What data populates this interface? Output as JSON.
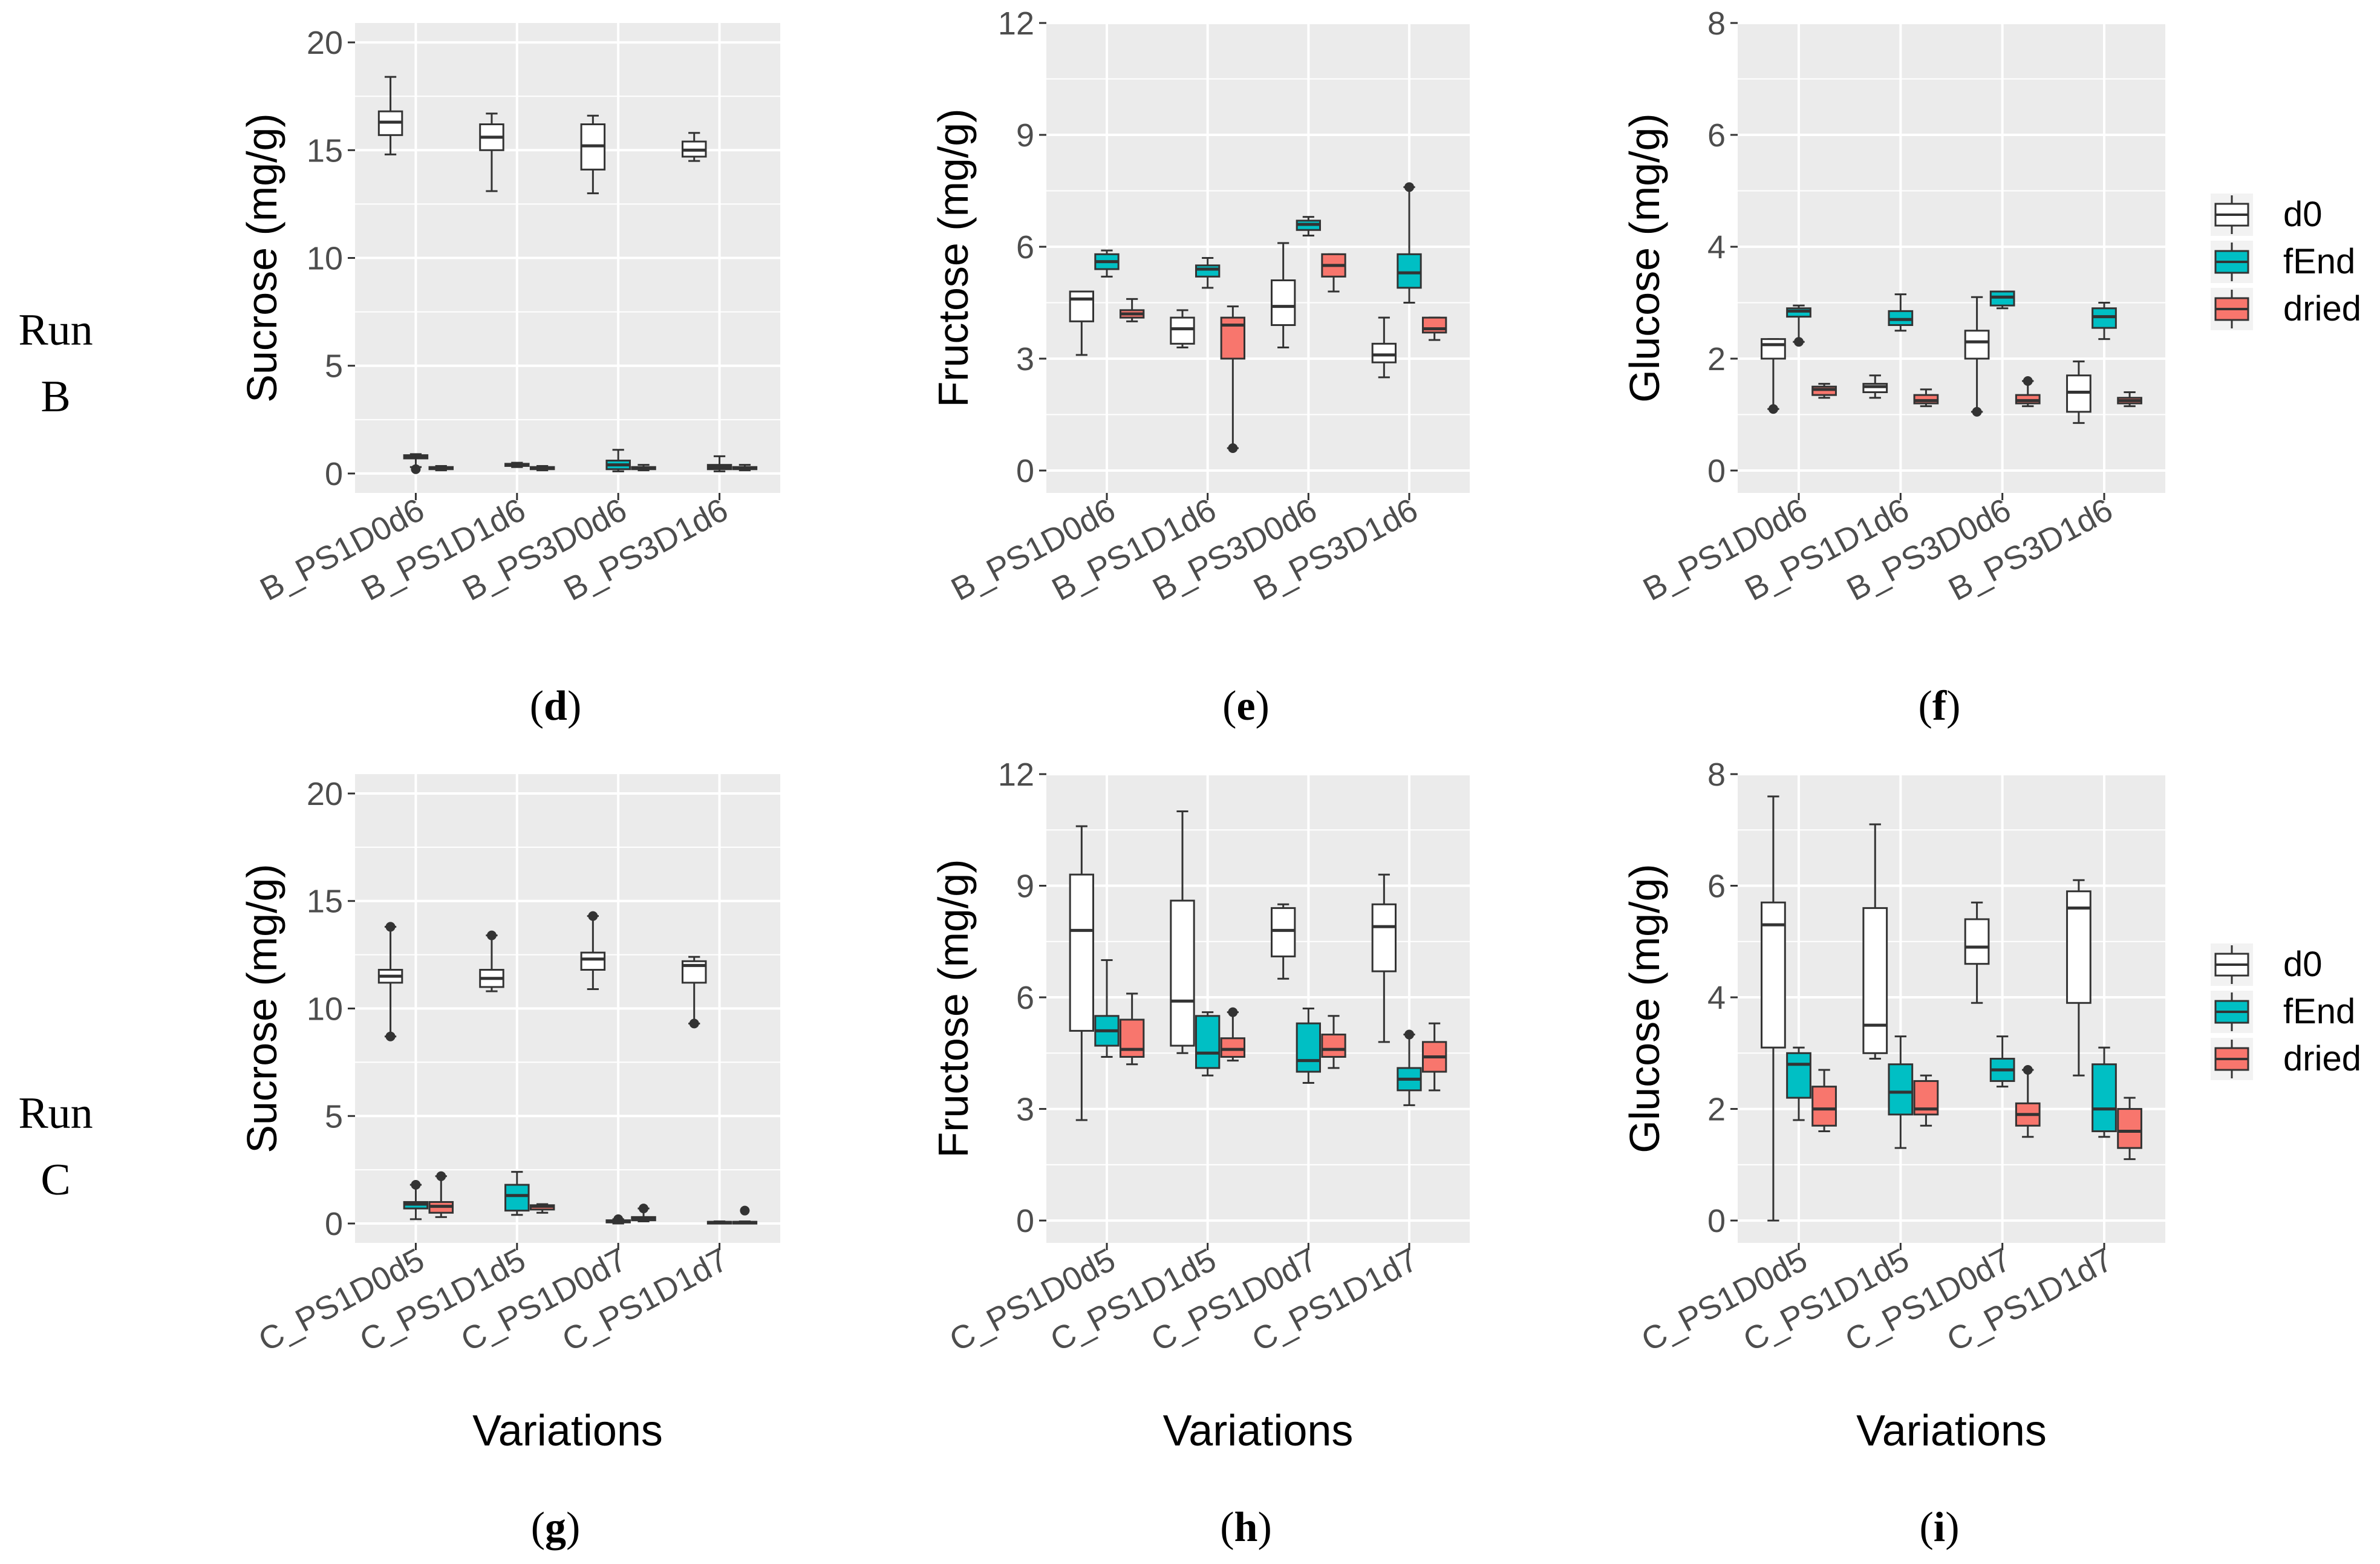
{
  "row_labels": [
    {
      "line1": "Run",
      "line2": "B"
    },
    {
      "line1": "Run",
      "line2": "C"
    }
  ],
  "x_axis_title": "Variations",
  "legend": {
    "entries": [
      {
        "label": "d0",
        "color": "#ffffff"
      },
      {
        "label": "fEnd",
        "color": "#00bfc4"
      },
      {
        "label": "dried",
        "color": "#f8766d"
      }
    ]
  },
  "chart_data": [
    {
      "panel": "(d)",
      "panel_letter": "d",
      "type": "boxplot",
      "ylabel": "Sucrose (mg/g)",
      "ylim": [
        -0.9,
        20.9
      ],
      "yticks": [
        0,
        5,
        10,
        15,
        20
      ],
      "categories": [
        "B_PS1D0d6",
        "B_PS1D1d6",
        "B_PS3D0d6",
        "B_PS3D1d6"
      ],
      "series": [
        {
          "name": "d0",
          "boxes": [
            [
              14.8,
              15.7,
              16.3,
              16.8,
              18.4
            ],
            [
              13.1,
              15.0,
              15.6,
              16.2,
              16.7
            ],
            [
              13.0,
              14.1,
              15.2,
              16.2,
              16.6
            ],
            [
              14.5,
              14.7,
              15.0,
              15.4,
              15.8
            ]
          ],
          "outliers": [
            [],
            [],
            [],
            []
          ]
        },
        {
          "name": "fEnd",
          "boxes": [
            [
              0.3,
              0.7,
              0.8,
              0.85,
              0.9
            ],
            [
              0.3,
              0.35,
              0.4,
              0.45,
              0.5
            ],
            [
              0.1,
              0.2,
              0.4,
              0.6,
              1.1
            ],
            [
              0.1,
              0.2,
              0.3,
              0.4,
              0.8
            ]
          ],
          "outliers": [
            [
              0.2
            ],
            [],
            [],
            []
          ]
        },
        {
          "name": "dried",
          "boxes": [
            [
              0.15,
              0.2,
              0.25,
              0.3,
              0.35
            ],
            [
              0.15,
              0.2,
              0.25,
              0.3,
              0.35
            ],
            [
              0.15,
              0.2,
              0.25,
              0.3,
              0.4
            ],
            [
              0.15,
              0.2,
              0.25,
              0.3,
              0.4
            ]
          ],
          "outliers": [
            [],
            [],
            [],
            []
          ]
        }
      ]
    },
    {
      "panel": "(e)",
      "panel_letter": "e",
      "type": "boxplot",
      "ylabel": "Fructose (mg/g)",
      "ylim": [
        -0.6,
        12.0
      ],
      "yticks": [
        0,
        3,
        6,
        9,
        12
      ],
      "categories": [
        "B_PS1D0d6",
        "B_PS1D1d6",
        "B_PS3D0d6",
        "B_PS3D1d6"
      ],
      "series": [
        {
          "name": "d0",
          "boxes": [
            [
              3.1,
              4.0,
              4.6,
              4.8,
              4.8
            ],
            [
              3.3,
              3.4,
              3.8,
              4.1,
              4.3
            ],
            [
              3.3,
              3.9,
              4.4,
              5.1,
              6.1
            ],
            [
              2.5,
              2.9,
              3.1,
              3.4,
              4.1
            ]
          ],
          "outliers": [
            [],
            [],
            [],
            []
          ]
        },
        {
          "name": "fEnd",
          "boxes": [
            [
              5.2,
              5.4,
              5.6,
              5.8,
              5.9
            ],
            [
              4.9,
              5.2,
              5.4,
              5.5,
              5.7
            ],
            [
              6.3,
              6.45,
              6.6,
              6.7,
              6.8
            ],
            [
              4.5,
              4.9,
              5.3,
              5.8,
              7.6
            ]
          ],
          "outliers": [
            [],
            [],
            [],
            [
              7.6
            ]
          ]
        },
        {
          "name": "dried",
          "boxes": [
            [
              4.0,
              4.1,
              4.2,
              4.3,
              4.6
            ],
            [
              0.6,
              3.0,
              3.9,
              4.1,
              4.4
            ],
            [
              4.8,
              5.2,
              5.5,
              5.8,
              5.8
            ],
            [
              3.5,
              3.7,
              3.8,
              4.1,
              4.1
            ]
          ],
          "outliers": [
            [],
            [
              0.6
            ],
            [],
            []
          ]
        }
      ]
    },
    {
      "panel": "(f)",
      "panel_letter": "f",
      "type": "boxplot",
      "ylabel": "Glucose (mg/g)",
      "ylim": [
        -0.4,
        8.0
      ],
      "yticks": [
        0,
        2,
        4,
        6,
        8
      ],
      "categories": [
        "B_PS1D0d6",
        "B_PS1D1d6",
        "B_PS3D0d6",
        "B_PS3D1d6"
      ],
      "series": [
        {
          "name": "d0",
          "boxes": [
            [
              1.1,
              2.0,
              2.25,
              2.35,
              2.35
            ],
            [
              1.3,
              1.4,
              1.5,
              1.55,
              1.7
            ],
            [
              1.05,
              2.0,
              2.3,
              2.5,
              3.1
            ],
            [
              0.85,
              1.05,
              1.4,
              1.7,
              1.95
            ]
          ],
          "outliers": [
            [
              1.1
            ],
            [],
            [
              1.05
            ],
            []
          ]
        },
        {
          "name": "fEnd",
          "boxes": [
            [
              2.3,
              2.75,
              2.85,
              2.9,
              2.95
            ],
            [
              2.5,
              2.6,
              2.7,
              2.85,
              3.15
            ],
            [
              2.9,
              2.95,
              3.1,
              3.2,
              3.2
            ],
            [
              2.35,
              2.55,
              2.75,
              2.9,
              3.0
            ]
          ],
          "outliers": [
            [
              2.3
            ],
            [],
            [],
            []
          ]
        },
        {
          "name": "dried",
          "boxes": [
            [
              1.3,
              1.35,
              1.45,
              1.5,
              1.55
            ],
            [
              1.15,
              1.2,
              1.25,
              1.35,
              1.45
            ],
            [
              1.15,
              1.2,
              1.25,
              1.35,
              1.6
            ],
            [
              1.15,
              1.2,
              1.25,
              1.3,
              1.4
            ]
          ],
          "outliers": [
            [],
            [],
            [
              1.6
            ],
            []
          ]
        }
      ]
    },
    {
      "panel": "(g)",
      "panel_letter": "g",
      "type": "boxplot",
      "ylabel": "Sucrose (mg/g)",
      "ylim": [
        -0.9,
        20.9
      ],
      "yticks": [
        0,
        5,
        10,
        15,
        20
      ],
      "categories": [
        "C_PS1D0d5",
        "C_PS1D1d5",
        "C_PS1D0d7",
        "C_PS1D1d7"
      ],
      "series": [
        {
          "name": "d0",
          "boxes": [
            [
              8.7,
              11.2,
              11.5,
              11.8,
              13.8
            ],
            [
              10.8,
              11.0,
              11.4,
              11.8,
              13.4
            ],
            [
              10.9,
              11.8,
              12.3,
              12.6,
              14.3
            ],
            [
              9.3,
              11.2,
              12.0,
              12.2,
              12.4
            ]
          ],
          "outliers": [
            [
              8.7,
              13.8
            ],
            [
              13.4
            ],
            [
              14.3
            ],
            [
              9.3
            ]
          ]
        },
        {
          "name": "fEnd",
          "boxes": [
            [
              0.2,
              0.7,
              0.9,
              1.0,
              1.8
            ],
            [
              0.4,
              0.6,
              1.3,
              1.8,
              2.4
            ],
            [
              0.0,
              0.05,
              0.1,
              0.15,
              0.2
            ],
            [
              0.0,
              0.02,
              0.05,
              0.08,
              0.1
            ]
          ],
          "outliers": [
            [
              1.8
            ],
            [],
            [
              0.2
            ],
            []
          ]
        },
        {
          "name": "dried",
          "boxes": [
            [
              0.3,
              0.5,
              0.8,
              1.0,
              2.2
            ],
            [
              0.5,
              0.65,
              0.8,
              0.85,
              0.9
            ],
            [
              0.1,
              0.15,
              0.2,
              0.3,
              0.7
            ],
            [
              0.0,
              0.02,
              0.05,
              0.08,
              0.1
            ]
          ],
          "outliers": [
            [
              2.2
            ],
            [],
            [
              0.7
            ],
            [
              0.6
            ]
          ]
        }
      ]
    },
    {
      "panel": "(h)",
      "panel_letter": "h",
      "type": "boxplot",
      "ylabel": "Fructose (mg/g)",
      "ylim": [
        -0.6,
        12.0
      ],
      "yticks": [
        0,
        3,
        6,
        9,
        12
      ],
      "categories": [
        "C_PS1D0d5",
        "C_PS1D1d5",
        "C_PS1D0d7",
        "C_PS1D1d7"
      ],
      "series": [
        {
          "name": "d0",
          "boxes": [
            [
              2.7,
              5.1,
              7.8,
              9.3,
              10.6
            ],
            [
              4.5,
              4.7,
              5.9,
              8.6,
              11.0
            ],
            [
              6.5,
              7.1,
              7.8,
              8.4,
              8.5
            ],
            [
              4.8,
              6.7,
              7.9,
              8.5,
              9.3
            ]
          ],
          "outliers": [
            [],
            [],
            [],
            []
          ]
        },
        {
          "name": "fEnd",
          "boxes": [
            [
              4.4,
              4.7,
              5.1,
              5.5,
              7.0
            ],
            [
              3.9,
              4.1,
              4.5,
              5.5,
              5.6
            ],
            [
              3.7,
              4.0,
              4.3,
              5.3,
              5.7
            ],
            [
              3.1,
              3.5,
              3.8,
              4.1,
              5.0
            ]
          ],
          "outliers": [
            [],
            [],
            [],
            [
              5.0
            ]
          ]
        },
        {
          "name": "dried",
          "boxes": [
            [
              4.2,
              4.4,
              4.6,
              5.4,
              6.1
            ],
            [
              4.3,
              4.4,
              4.6,
              4.9,
              5.6
            ],
            [
              4.1,
              4.4,
              4.6,
              5.0,
              5.5
            ],
            [
              3.5,
              4.0,
              4.4,
              4.8,
              5.3
            ]
          ],
          "outliers": [
            [],
            [
              5.6
            ],
            [],
            []
          ]
        }
      ]
    },
    {
      "panel": "(i)",
      "panel_letter": "i",
      "type": "boxplot",
      "ylabel": "Glucose (mg/g)",
      "ylim": [
        -0.4,
        8.0
      ],
      "yticks": [
        0,
        2,
        4,
        6,
        8
      ],
      "categories": [
        "C_PS1D0d5",
        "C_PS1D1d5",
        "C_PS1D0d7",
        "C_PS1D1d7"
      ],
      "series": [
        {
          "name": "d0",
          "boxes": [
            [
              0.0,
              3.1,
              5.3,
              5.7,
              7.6
            ],
            [
              2.9,
              3.0,
              3.5,
              5.6,
              7.1
            ],
            [
              3.9,
              4.6,
              4.9,
              5.4,
              5.7
            ],
            [
              2.6,
              3.9,
              5.6,
              5.9,
              6.1
            ]
          ],
          "outliers": [
            [],
            [],
            [],
            []
          ]
        },
        {
          "name": "fEnd",
          "boxes": [
            [
              1.8,
              2.2,
              2.8,
              3.0,
              3.1
            ],
            [
              1.3,
              1.9,
              2.3,
              2.8,
              3.3
            ],
            [
              2.4,
              2.5,
              2.7,
              2.9,
              3.3
            ],
            [
              1.5,
              1.6,
              2.0,
              2.8,
              3.1
            ]
          ],
          "outliers": [
            [],
            [],
            [],
            []
          ]
        },
        {
          "name": "dried",
          "boxes": [
            [
              1.6,
              1.7,
              2.0,
              2.4,
              2.7
            ],
            [
              1.7,
              1.9,
              2.0,
              2.5,
              2.6
            ],
            [
              1.5,
              1.7,
              1.9,
              2.1,
              2.7
            ],
            [
              1.1,
              1.3,
              1.6,
              2.0,
              2.2
            ]
          ],
          "outliers": [
            [],
            [],
            [
              2.7
            ],
            []
          ]
        }
      ]
    }
  ]
}
